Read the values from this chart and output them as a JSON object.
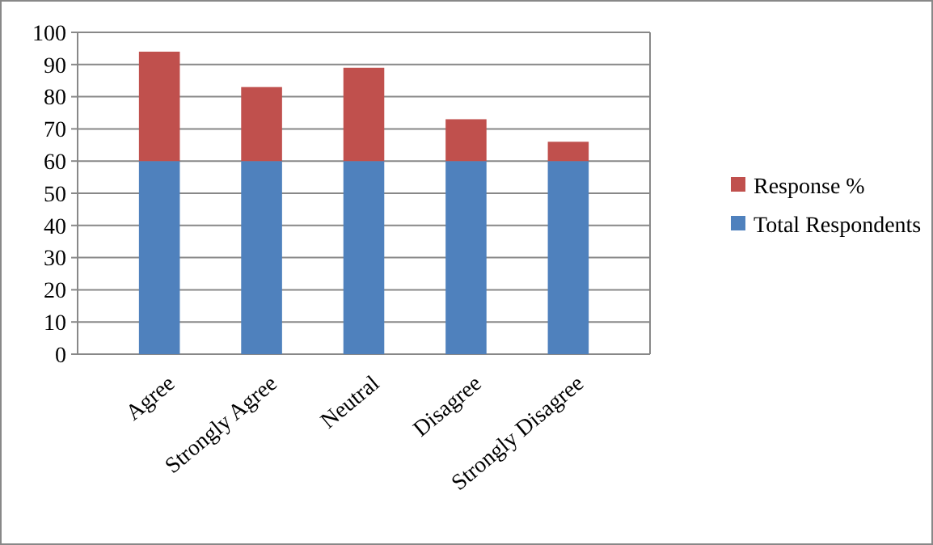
{
  "chart_data": {
    "type": "bar",
    "stacked": true,
    "categories": [
      "Agree",
      "Strongly Agree",
      "Neutral",
      "Disagree",
      "Strongly Disagree"
    ],
    "series": [
      {
        "name": "Total Respondents",
        "color": "#4f81bd",
        "values": [
          60,
          60,
          60,
          60,
          60
        ]
      },
      {
        "name": "Response %",
        "color": "#c0504d",
        "values": [
          34,
          23,
          29,
          13,
          6
        ]
      }
    ],
    "ylim": [
      0,
      100
    ],
    "yticks": [
      0,
      10,
      20,
      30,
      40,
      50,
      60,
      70,
      80,
      90,
      100
    ],
    "grid": "y",
    "legend": "right"
  }
}
